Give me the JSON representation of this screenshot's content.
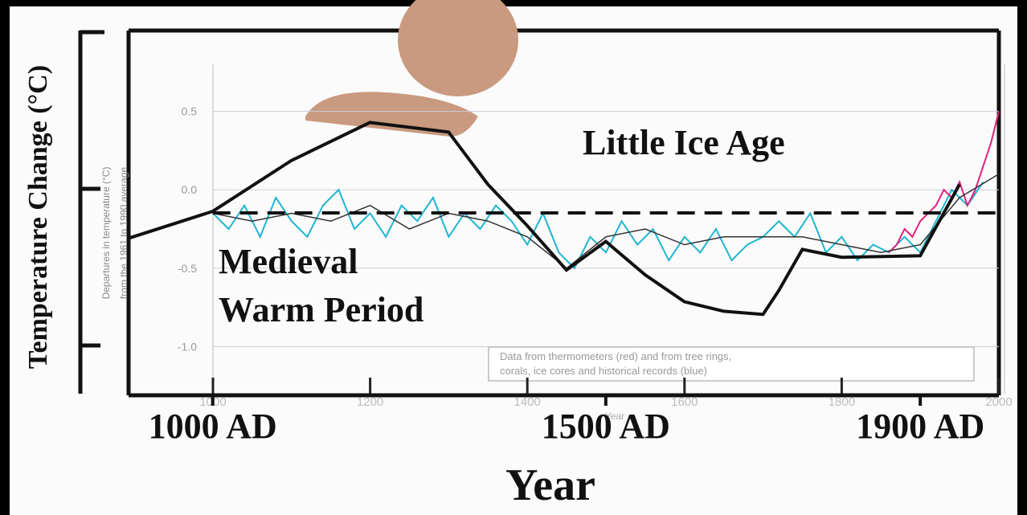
{
  "chart_data": [
    {
      "type": "line",
      "ylabel": "Temperature Change (°C)",
      "xlabel": "Year",
      "annotations": [
        "Little Ice Age",
        "Medieval",
        "Warm Period"
      ],
      "xlim": [
        893,
        2000
      ],
      "ylim": [
        -1.3,
        1.0
      ],
      "xticks": [
        {
          "value": 1000,
          "label": "1000 AD"
        },
        {
          "value": 1500,
          "label": "1500 AD"
        },
        {
          "value": 1900,
          "label": "1900 AD"
        }
      ],
      "series": [
        {
          "color": "#111111",
          "style": "solid",
          "x": [
            893,
            1000,
            1100,
            1200,
            1300,
            1350,
            1400,
            1450,
            1500,
            1550,
            1600,
            1650,
            1700,
            1720,
            1750,
            1800,
            1900,
            1950
          ],
          "values": [
            -0.31,
            -0.14,
            0.18,
            0.42,
            0.36,
            0.03,
            -0.23,
            -0.51,
            -0.33,
            -0.54,
            -0.71,
            -0.77,
            -0.79,
            -0.64,
            -0.38,
            -0.43,
            -0.42,
            0.03
          ]
        },
        {
          "color": "#111111",
          "style": "dashed",
          "x": [
            1000,
            2000
          ],
          "values": [
            -0.15,
            -0.15
          ]
        }
      ]
    },
    {
      "type": "line",
      "ylabel": [
        "Departures in temperature (°C)",
        "from the 1961 to 1990 average"
      ],
      "xlabel": "Year",
      "note": [
        "Data from thermometers (red) and from tree rings,",
        "corals, ice cores and historical records (blue)"
      ],
      "xlim": [
        1000,
        2000
      ],
      "ylim": [
        -1.3,
        0.8
      ],
      "xticks": [
        1000,
        1200,
        1400,
        1600,
        1800,
        2000
      ],
      "yticks": [
        0.5,
        {
          "value": 0,
          "label": "0.0"
        },
        -0.5,
        {
          "value": -1,
          "label": "-1.0"
        }
      ],
      "grid": true,
      "series": [
        {
          "color": "#1fb5d0",
          "style": "solid",
          "x": [
            1000,
            1020,
            1040,
            1060,
            1080,
            1100,
            1120,
            1140,
            1160,
            1180,
            1200,
            1220,
            1240,
            1260,
            1280,
            1300,
            1320,
            1340,
            1360,
            1380,
            1400,
            1420,
            1440,
            1460,
            1480,
            1500,
            1520,
            1540,
            1560,
            1580,
            1600,
            1620,
            1640,
            1660,
            1680,
            1700,
            1720,
            1740,
            1760,
            1780,
            1800,
            1820,
            1840,
            1860,
            1880,
            1900,
            1920,
            1940,
            1960,
            1980
          ],
          "values": [
            -0.15,
            -0.25,
            -0.1,
            -0.3,
            -0.05,
            -0.2,
            -0.3,
            -0.1,
            0.0,
            -0.25,
            -0.15,
            -0.3,
            -0.1,
            -0.2,
            -0.05,
            -0.3,
            -0.15,
            -0.25,
            -0.1,
            -0.2,
            -0.35,
            -0.15,
            -0.4,
            -0.5,
            -0.3,
            -0.4,
            -0.2,
            -0.35,
            -0.25,
            -0.45,
            -0.3,
            -0.4,
            -0.25,
            -0.45,
            -0.35,
            -0.3,
            -0.2,
            -0.3,
            -0.15,
            -0.4,
            -0.3,
            -0.45,
            -0.35,
            -0.4,
            -0.3,
            -0.4,
            -0.2,
            0.0,
            -0.1,
            0.05
          ]
        },
        {
          "color": "#e0207a",
          "style": "solid",
          "x": [
            1860,
            1870,
            1880,
            1890,
            1900,
            1910,
            1920,
            1930,
            1940,
            1950,
            1960,
            1970,
            1980,
            1990,
            2000
          ],
          "values": [
            -0.4,
            -0.35,
            -0.25,
            -0.3,
            -0.2,
            -0.15,
            -0.1,
            0.0,
            -0.05,
            0.05,
            -0.1,
            0.0,
            0.15,
            0.3,
            0.5
          ]
        },
        {
          "color": "#333333",
          "style": "thin",
          "x": [
            1000,
            1050,
            1100,
            1150,
            1200,
            1250,
            1300,
            1350,
            1400,
            1450,
            1500,
            1550,
            1600,
            1650,
            1700,
            1750,
            1800,
            1850,
            1900,
            1950,
            2000
          ],
          "values": [
            -0.15,
            -0.2,
            -0.15,
            -0.2,
            -0.1,
            -0.25,
            -0.15,
            -0.2,
            -0.3,
            -0.5,
            -0.3,
            -0.25,
            -0.35,
            -0.3,
            -0.3,
            -0.3,
            -0.35,
            -0.4,
            -0.35,
            -0.05,
            0.1
          ]
        }
      ]
    }
  ]
}
